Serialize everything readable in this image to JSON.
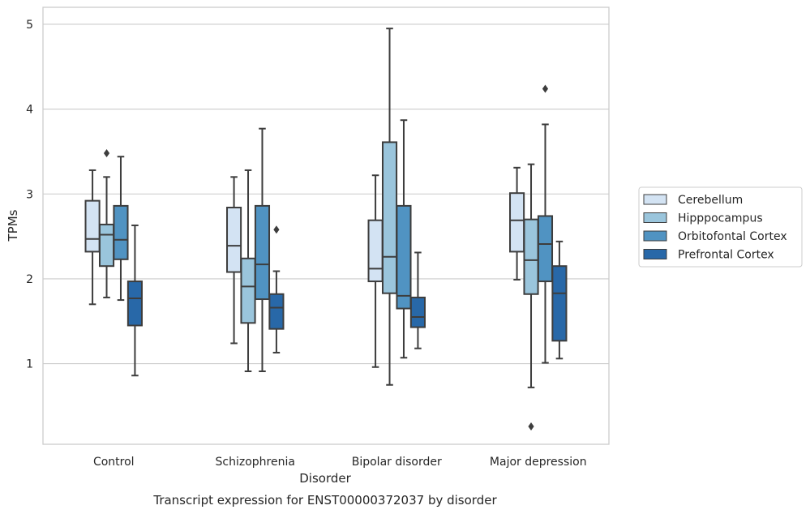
{
  "chart_data": {
    "type": "boxplot",
    "title": "Transcript expression for ENST00000372037 by disorder",
    "xlabel": "Disorder",
    "ylabel": "TPMs",
    "ylim": [
      0.05,
      5.2
    ],
    "yticks": [
      1,
      2,
      3,
      4,
      5
    ],
    "grid": true,
    "legend_position": "right",
    "categories": [
      "Control",
      "Schizophrenia",
      "Bipolar disorder",
      "Major depression"
    ],
    "series": [
      {
        "name": "Cerebellum",
        "color": "#d3e3f3",
        "boxes": [
          {
            "whisker_low": 1.7,
            "q1": 2.32,
            "median": 2.47,
            "q3": 2.92,
            "whisker_high": 3.28,
            "outliers": []
          },
          {
            "whisker_low": 1.24,
            "q1": 2.08,
            "median": 2.39,
            "q3": 2.84,
            "whisker_high": 3.2,
            "outliers": []
          },
          {
            "whisker_low": 0.96,
            "q1": 1.97,
            "median": 2.12,
            "q3": 2.69,
            "whisker_high": 3.22,
            "outliers": []
          },
          {
            "whisker_low": 1.99,
            "q1": 2.32,
            "median": 2.69,
            "q3": 3.01,
            "whisker_high": 3.31,
            "outliers": []
          }
        ]
      },
      {
        "name": "Hipppocampus",
        "color": "#9ac5dc",
        "boxes": [
          {
            "whisker_low": 1.78,
            "q1": 2.15,
            "median": 2.52,
            "q3": 2.64,
            "whisker_high": 3.2,
            "outliers": [
              3.48
            ]
          },
          {
            "whisker_low": 0.91,
            "q1": 1.48,
            "median": 1.91,
            "q3": 2.24,
            "whisker_high": 3.28,
            "outliers": []
          },
          {
            "whisker_low": 0.75,
            "q1": 1.83,
            "median": 2.26,
            "q3": 3.61,
            "whisker_high": 4.95,
            "outliers": []
          },
          {
            "whisker_low": 0.72,
            "q1": 1.82,
            "median": 2.22,
            "q3": 2.7,
            "whisker_high": 3.35,
            "outliers": [
              0.26
            ]
          }
        ]
      },
      {
        "name": "Orbitofontal Cortex",
        "color": "#5093c2",
        "boxes": [
          {
            "whisker_low": 1.75,
            "q1": 2.23,
            "median": 2.46,
            "q3": 2.86,
            "whisker_high": 3.44,
            "outliers": []
          },
          {
            "whisker_low": 0.91,
            "q1": 1.76,
            "median": 2.17,
            "q3": 2.86,
            "whisker_high": 3.77,
            "outliers": []
          },
          {
            "whisker_low": 1.07,
            "q1": 1.65,
            "median": 1.8,
            "q3": 2.86,
            "whisker_high": 3.87,
            "outliers": []
          },
          {
            "whisker_low": 1.01,
            "q1": 1.97,
            "median": 2.41,
            "q3": 2.74,
            "whisker_high": 3.82,
            "outliers": [
              4.24
            ]
          }
        ]
      },
      {
        "name": "Prefrontal Cortex",
        "color": "#2868a8",
        "boxes": [
          {
            "whisker_low": 0.86,
            "q1": 1.45,
            "median": 1.77,
            "q3": 1.97,
            "whisker_high": 2.63,
            "outliers": []
          },
          {
            "whisker_low": 1.13,
            "q1": 1.41,
            "median": 1.66,
            "q3": 1.82,
            "whisker_high": 2.09,
            "outliers": [
              2.58
            ]
          },
          {
            "whisker_low": 1.18,
            "q1": 1.43,
            "median": 1.55,
            "q3": 1.78,
            "whisker_high": 2.31,
            "outliers": []
          },
          {
            "whisker_low": 1.06,
            "q1": 1.27,
            "median": 1.83,
            "q3": 2.15,
            "whisker_high": 2.44,
            "outliers": []
          }
        ]
      }
    ]
  }
}
